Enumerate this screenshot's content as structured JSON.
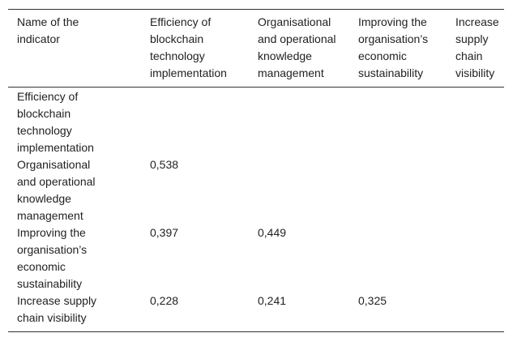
{
  "table": {
    "header": [
      "Name of the indicator",
      "Efficiency of blockchain technology implementation",
      "Organisational and operational knowledge management",
      "Improving the organisation’s economic sustainability",
      "Increase supply chain visibility"
    ],
    "rows": [
      {
        "label": "Efficiency of blockchain technology implementation",
        "values": []
      },
      {
        "label": "Organisational and operational knowledge management",
        "values": [
          "0,538"
        ]
      },
      {
        "label": "Improving the organisation’s economic sustainability",
        "values": [
          "0,397",
          "0,449"
        ]
      },
      {
        "label": "Increase supply chain visibility",
        "values": [
          "0,228",
          "0,241",
          "0,325"
        ]
      }
    ]
  }
}
